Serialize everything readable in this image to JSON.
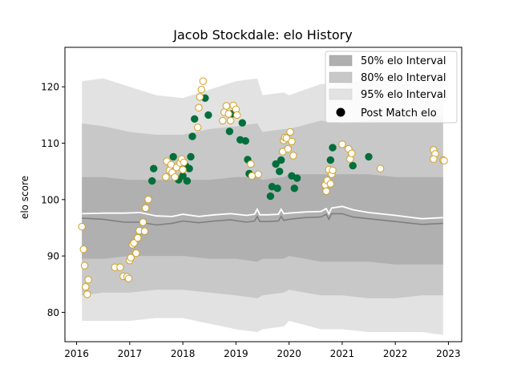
{
  "chart_data": {
    "type": "scatter",
    "title": "Jacob Stockdale: elo History",
    "xlabel": "",
    "ylabel": "elo score",
    "xlim": [
      2015.78,
      2023.25
    ],
    "ylim": [
      74.8,
      127.0
    ],
    "x_ticks": [
      "2016",
      "2017",
      "2018",
      "2019",
      "2020",
      "2021",
      "2022",
      "2023"
    ],
    "x_tick_values": [
      2016,
      2017,
      2018,
      2019,
      2020,
      2021,
      2022,
      2023
    ],
    "y_ticks": [
      "80",
      "90",
      "100",
      "110",
      "120"
    ],
    "y_tick_values": [
      80,
      90,
      100,
      110,
      120
    ],
    "grid": false,
    "legend_position": "top-right",
    "legend": [
      {
        "label": "50% elo Interval",
        "color": "#b0b0b0",
        "kind": "patch"
      },
      {
        "label": "80% elo Interval",
        "color": "#c8c8c8",
        "kind": "patch"
      },
      {
        "label": "95% elo Interval",
        "color": "#e2e2e2",
        "kind": "patch"
      },
      {
        "label": "Post Match elo",
        "color": "#000000",
        "kind": "marker"
      }
    ],
    "colors": {
      "win": "#006f3c",
      "loss_fill": "#ffffff",
      "loss_edge": "#d4a020",
      "mean_line": "#ffffff",
      "median_line": "#7f7f7f"
    },
    "bands": {
      "x": [
        2016.1,
        2016.5,
        2017.0,
        2017.5,
        2018.0,
        2018.5,
        2019.0,
        2019.4,
        2019.5,
        2019.9,
        2020.0,
        2020.6,
        2021.0,
        2021.5,
        2022.0,
        2022.5,
        2022.9
      ],
      "p95_upper": [
        121.0,
        121.5,
        120.0,
        118.5,
        118.0,
        119.5,
        121.0,
        121.5,
        118.5,
        119.0,
        118.5,
        120.5,
        120.5,
        121.5,
        121.0,
        120.0,
        121.5
      ],
      "p95_lower": [
        78.5,
        78.5,
        78.5,
        79.0,
        79.0,
        78.0,
        77.0,
        76.5,
        77.0,
        77.5,
        78.5,
        77.0,
        77.0,
        76.5,
        76.5,
        76.5,
        76.0
      ],
      "p80_upper": [
        113.5,
        113.0,
        112.0,
        111.5,
        111.5,
        112.5,
        113.0,
        113.5,
        112.0,
        112.5,
        112.5,
        114.0,
        113.5,
        114.0,
        114.5,
        114.5,
        115.0
      ],
      "p80_lower": [
        83.0,
        83.5,
        83.5,
        84.0,
        84.0,
        83.5,
        83.0,
        82.5,
        83.0,
        83.5,
        84.0,
        83.0,
        83.0,
        82.5,
        82.5,
        83.0,
        83.0
      ],
      "p50_upper": [
        104.0,
        104.0,
        103.5,
        103.5,
        103.5,
        103.5,
        104.0,
        104.0,
        103.5,
        104.0,
        104.5,
        104.5,
        104.5,
        104.5,
        104.0,
        104.0,
        104.0
      ],
      "p50_lower": [
        89.5,
        89.5,
        90.0,
        90.0,
        90.0,
        89.5,
        89.5,
        89.0,
        89.5,
        89.5,
        90.0,
        89.0,
        89.0,
        89.0,
        88.5,
        88.5,
        88.5
      ]
    },
    "lines": {
      "x": [
        2016.1,
        2016.5,
        2016.9,
        2017.2,
        2017.5,
        2017.8,
        2018.0,
        2018.3,
        2018.6,
        2018.9,
        2019.2,
        2019.35,
        2019.4,
        2019.45,
        2019.6,
        2019.8,
        2019.85,
        2019.9,
        2020.0,
        2020.3,
        2020.6,
        2020.7,
        2020.75,
        2020.8,
        2021.0,
        2021.2,
        2021.5,
        2022.0,
        2022.5,
        2022.9
      ],
      "mean": [
        97.5,
        97.6,
        97.6,
        97.7,
        97.1,
        97.0,
        97.4,
        97.0,
        97.3,
        97.5,
        97.2,
        97.4,
        98.3,
        97.3,
        97.3,
        97.4,
        98.3,
        97.5,
        97.6,
        97.8,
        97.9,
        98.4,
        97.5,
        98.5,
        98.8,
        98.2,
        97.7,
        97.2,
        96.6,
        96.8
      ],
      "median": [
        96.7,
        96.5,
        96.0,
        96.0,
        95.5,
        95.8,
        96.2,
        95.9,
        96.2,
        96.4,
        96.0,
        96.2,
        97.0,
        96.1,
        96.1,
        96.2,
        97.0,
        96.3,
        96.5,
        96.8,
        96.9,
        97.4,
        96.5,
        97.5,
        97.5,
        96.9,
        96.6,
        96.1,
        95.6,
        95.8
      ]
    },
    "series": [
      {
        "name": "win",
        "points": [
          [
            2017.42,
            103.3
          ],
          [
            2017.45,
            105.5
          ],
          [
            2017.82,
            107.6
          ],
          [
            2017.92,
            103.5
          ],
          [
            2018.0,
            104.2
          ],
          [
            2018.05,
            106.0
          ],
          [
            2018.08,
            103.3
          ],
          [
            2018.12,
            105.5
          ],
          [
            2018.15,
            107.6
          ],
          [
            2018.18,
            111.2
          ],
          [
            2018.22,
            114.3
          ],
          [
            2018.42,
            118.0
          ],
          [
            2018.48,
            115.0
          ],
          [
            2018.88,
            112.1
          ],
          [
            2018.92,
            115.2
          ],
          [
            2019.08,
            110.6
          ],
          [
            2019.12,
            113.6
          ],
          [
            2019.18,
            110.4
          ],
          [
            2019.22,
            107.1
          ],
          [
            2019.25,
            104.6
          ],
          [
            2019.65,
            100.6
          ],
          [
            2019.68,
            102.3
          ],
          [
            2019.75,
            106.3
          ],
          [
            2019.78,
            102.0
          ],
          [
            2019.82,
            105.0
          ],
          [
            2019.85,
            107.0
          ],
          [
            2020.05,
            104.2
          ],
          [
            2020.1,
            102.0
          ],
          [
            2020.15,
            103.8
          ],
          [
            2020.78,
            107.0
          ],
          [
            2020.82,
            109.2
          ],
          [
            2021.2,
            106.0
          ],
          [
            2021.5,
            107.6
          ]
        ]
      },
      {
        "name": "loss",
        "points": [
          [
            2016.1,
            95.2
          ],
          [
            2016.13,
            91.2
          ],
          [
            2016.15,
            88.3
          ],
          [
            2016.17,
            84.5
          ],
          [
            2016.2,
            83.2
          ],
          [
            2016.22,
            85.8
          ],
          [
            2016.72,
            88.0
          ],
          [
            2016.82,
            88.0
          ],
          [
            2016.88,
            86.4
          ],
          [
            2016.95,
            86.3
          ],
          [
            2016.98,
            86.0
          ],
          [
            2017.0,
            89.2
          ],
          [
            2017.02,
            89.7
          ],
          [
            2017.05,
            92.0
          ],
          [
            2017.08,
            92.3
          ],
          [
            2017.12,
            90.5
          ],
          [
            2017.15,
            93.2
          ],
          [
            2017.18,
            94.5
          ],
          [
            2017.25,
            96.0
          ],
          [
            2017.28,
            94.4
          ],
          [
            2017.3,
            98.5
          ],
          [
            2017.35,
            100.0
          ],
          [
            2017.68,
            104.0
          ],
          [
            2017.7,
            106.8
          ],
          [
            2017.75,
            105.2
          ],
          [
            2017.78,
            106.2
          ],
          [
            2017.8,
            104.8
          ],
          [
            2017.85,
            104.0
          ],
          [
            2017.88,
            105.7
          ],
          [
            2017.95,
            106.5
          ],
          [
            2017.98,
            107.2
          ],
          [
            2018.0,
            105.3
          ],
          [
            2018.02,
            106.6
          ],
          [
            2018.28,
            112.8
          ],
          [
            2018.3,
            116.3
          ],
          [
            2018.32,
            118.2
          ],
          [
            2018.35,
            119.5
          ],
          [
            2018.38,
            121.0
          ],
          [
            2018.75,
            114.0
          ],
          [
            2018.78,
            115.5
          ],
          [
            2018.82,
            116.6
          ],
          [
            2018.86,
            115.2
          ],
          [
            2018.9,
            114.0
          ],
          [
            2018.95,
            116.7
          ],
          [
            2019.0,
            116.0
          ],
          [
            2019.02,
            115.0
          ],
          [
            2019.28,
            106.3
          ],
          [
            2019.3,
            104.2
          ],
          [
            2019.42,
            104.5
          ],
          [
            2019.88,
            108.5
          ],
          [
            2019.9,
            110.5
          ],
          [
            2019.92,
            111.0
          ],
          [
            2019.95,
            110.9
          ],
          [
            2019.98,
            109.0
          ],
          [
            2020.02,
            112.0
          ],
          [
            2020.05,
            110.3
          ],
          [
            2020.08,
            107.8
          ],
          [
            2020.68,
            102.6
          ],
          [
            2020.7,
            101.5
          ],
          [
            2020.72,
            103.4
          ],
          [
            2020.75,
            105.3
          ],
          [
            2020.78,
            102.8
          ],
          [
            2020.8,
            104.5
          ],
          [
            2020.82,
            105.2
          ],
          [
            2021.0,
            109.8
          ],
          [
            2021.12,
            109.0
          ],
          [
            2021.15,
            107.2
          ],
          [
            2021.18,
            108.2
          ],
          [
            2021.72,
            105.5
          ],
          [
            2022.72,
            108.8
          ],
          [
            2022.75,
            108.1
          ],
          [
            2022.72,
            107.2
          ],
          [
            2022.9,
            107.0
          ],
          [
            2022.92,
            106.9
          ]
        ]
      }
    ]
  }
}
